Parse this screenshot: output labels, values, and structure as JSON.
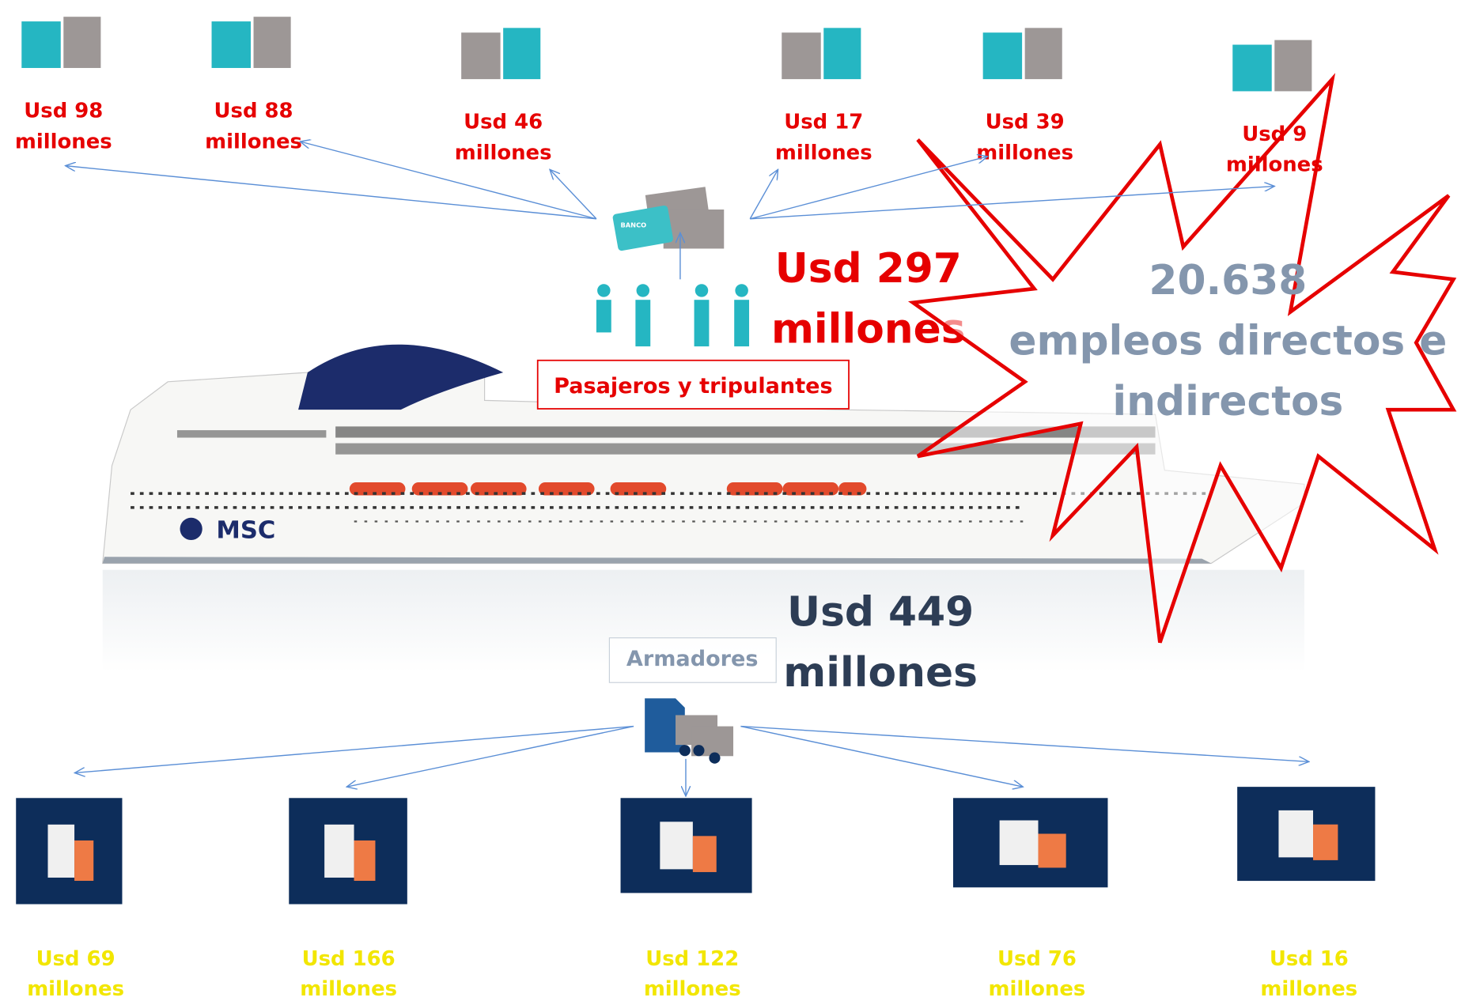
{
  "top_spending": [
    {
      "amount": "Usd 98",
      "unit": "millones"
    },
    {
      "amount": "Usd  88",
      "unit": "millones"
    },
    {
      "amount": "Usd 46",
      "unit": "millones"
    },
    {
      "amount": "Usd  17",
      "unit": "millones"
    },
    {
      "amount": "Usd 39",
      "unit": "millones"
    },
    {
      "amount": "Usd 9",
      "unit": "millones"
    }
  ],
  "passengers": {
    "amount": "Usd 297",
    "unit": "millones",
    "label": "Pasajeros y tripulantes",
    "card_text": "BANCO"
  },
  "employment": {
    "number": "20.638",
    "line1": "empleos directos e",
    "line2": "indirectos"
  },
  "ship": {
    "logo": "MSC"
  },
  "shipowners": {
    "amount": "Usd 449",
    "unit": "millones",
    "label": "Armadores"
  },
  "bottom_spending": [
    {
      "amount": "Usd  69",
      "unit": "millones"
    },
    {
      "amount": "Usd 166",
      "unit": "millones"
    },
    {
      "amount": "Usd 122",
      "unit": "millones"
    },
    {
      "amount": "Usd 76",
      "unit": "millones"
    },
    {
      "amount": "Usd 16",
      "unit": "millones"
    }
  ]
}
